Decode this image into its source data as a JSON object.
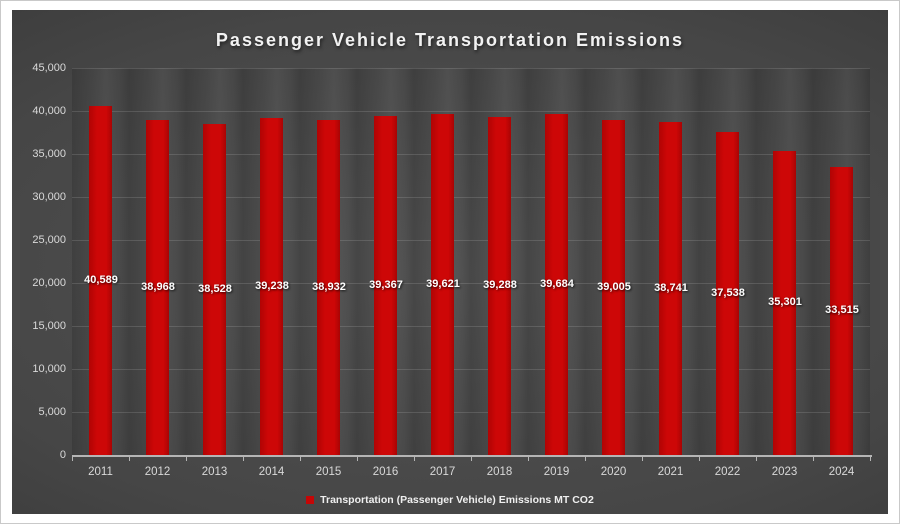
{
  "chart_data": {
    "type": "bar",
    "title": "Passenger Vehicle Transportation Emissions",
    "categories": [
      "2011",
      "2012",
      "2013",
      "2014",
      "2015",
      "2016",
      "2017",
      "2018",
      "2019",
      "2020",
      "2021",
      "2022",
      "2023",
      "2024"
    ],
    "series": [
      {
        "name": "Transportation (Passenger Vehicle) Emissions MT CO2",
        "values": [
          40589,
          38968,
          38528,
          39238,
          38932,
          39367,
          39621,
          39288,
          39684,
          39005,
          38741,
          37538,
          35301,
          33515
        ],
        "value_labels": [
          "40,589",
          "38,968",
          "38,528",
          "39,238",
          "38,932",
          "39,367",
          "39,621",
          "39,288",
          "39,684",
          "39,005",
          "38,741",
          "37,538",
          "35,301",
          "33,515"
        ],
        "color": "#c50606"
      }
    ],
    "xlabel": "",
    "ylabel": "",
    "ylim": [
      0,
      45000
    ],
    "yticks": {
      "values": [
        0,
        5000,
        10000,
        15000,
        20000,
        25000,
        30000,
        35000,
        40000,
        45000
      ],
      "labels": [
        "0",
        "5,000",
        "10,000",
        "15,000",
        "20,000",
        "25,000",
        "30,000",
        "35,000",
        "40,000",
        "45,000"
      ]
    },
    "grid": true,
    "legend_position": "bottom",
    "value_label_position": "center",
    "colors": {
      "bar": "#c50606",
      "panel_background": "#3f3f3f",
      "gridline": "rgba(255,255,255,0.13)",
      "axis_text": "#d9d9d9",
      "title_text": "#f2f2f2",
      "value_label_text": "#ffffff",
      "outer_margin": "#ffffff"
    }
  }
}
